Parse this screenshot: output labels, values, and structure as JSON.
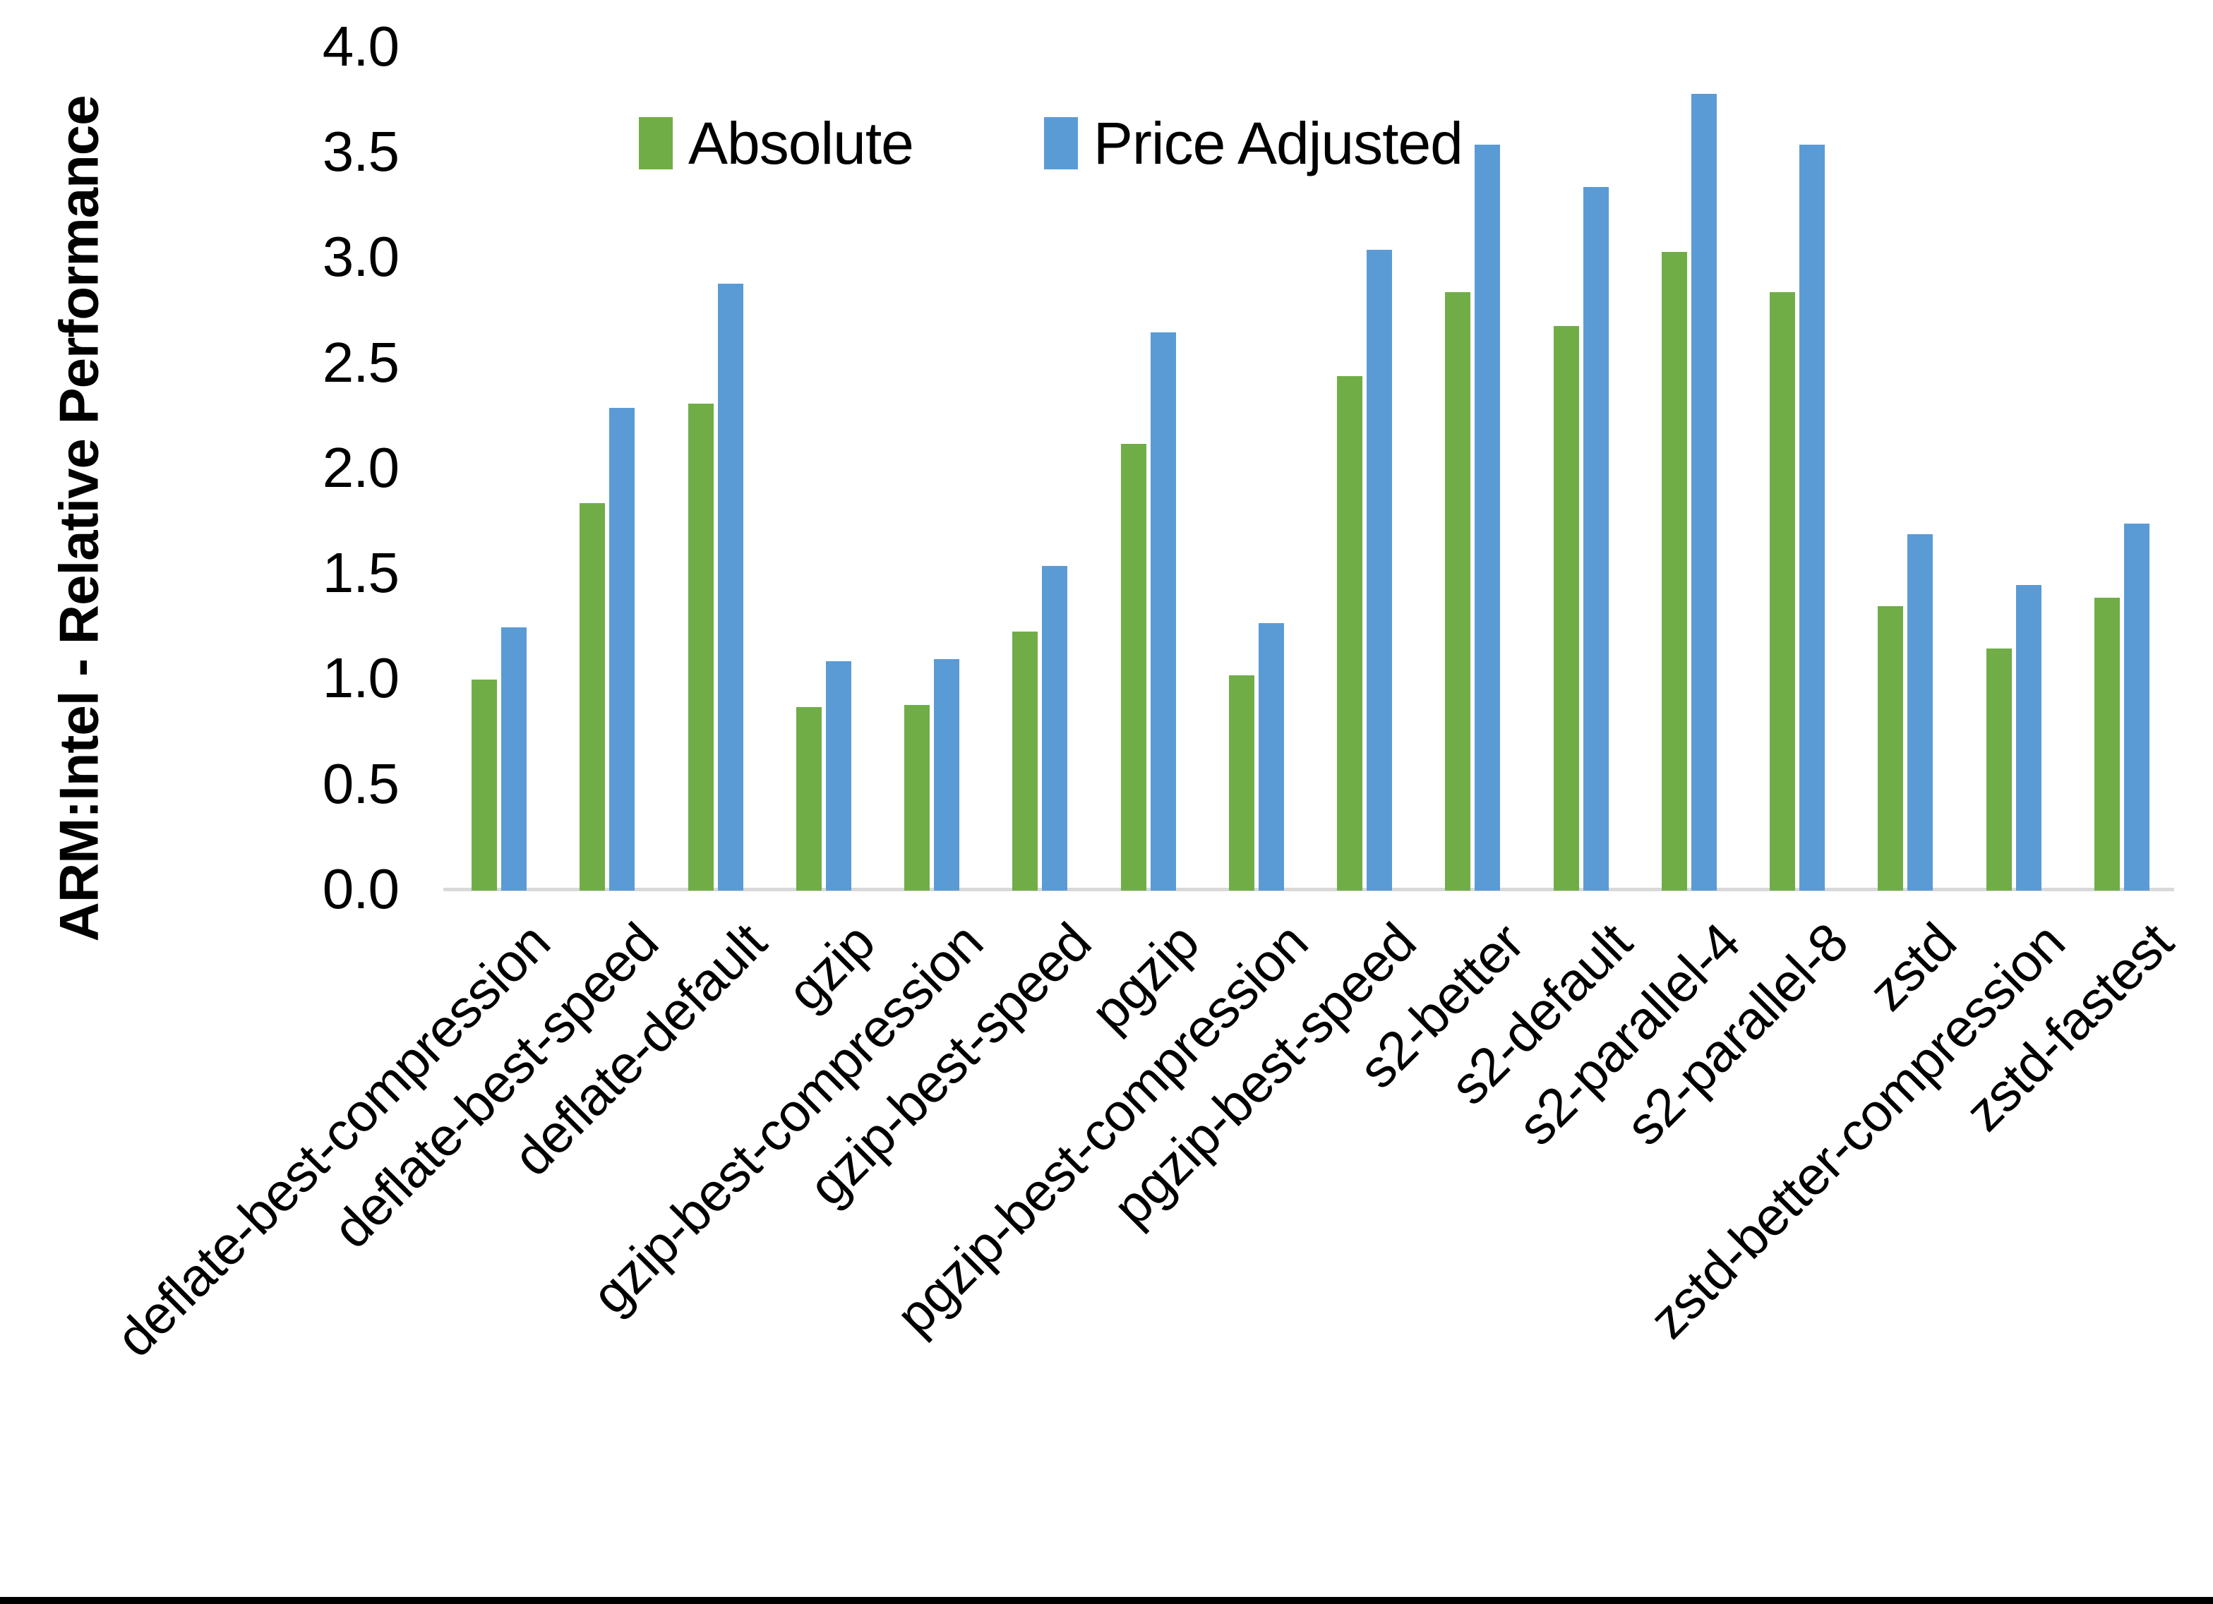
{
  "chart_data": {
    "type": "bar",
    "title": "",
    "xlabel": "",
    "ylabel": "ARM:Intel - Relative Performance",
    "ylim": [
      0.0,
      4.0
    ],
    "ytick_step": 0.5,
    "ytick_labels": [
      "0.0",
      "0.5",
      "1.0",
      "1.5",
      "2.0",
      "2.5",
      "3.0",
      "3.5",
      "4.0"
    ],
    "grid": false,
    "legend_position": "top-center",
    "categories": [
      "deflate-best-compression",
      "deflate-best-speed",
      "deflate-default",
      "gzip",
      "gzip-best-compression",
      "gzip-best-speed",
      "pgzip",
      "pgzip-best-compression",
      "pgzip-best-speed",
      "s2-better",
      "s2-default",
      "s2-parallel-4",
      "s2-parallel-8",
      "zstd",
      "zstd-better-compression",
      "zstd-fastest"
    ],
    "series": [
      {
        "name": "Absolute",
        "color": "#70AD47",
        "values": [
          1.0,
          1.84,
          2.31,
          0.87,
          0.88,
          1.23,
          2.12,
          1.02,
          2.44,
          2.84,
          2.68,
          3.03,
          2.84,
          1.35,
          1.15,
          1.39
        ]
      },
      {
        "name": "Price Adjusted",
        "color": "#5B9BD5",
        "values": [
          1.25,
          2.29,
          2.88,
          1.09,
          1.1,
          1.54,
          2.65,
          1.27,
          3.04,
          3.54,
          3.34,
          3.78,
          3.54,
          1.69,
          1.45,
          1.74
        ]
      }
    ],
    "axis_line_color": "#D9D9D9",
    "text_color": "#000000"
  }
}
